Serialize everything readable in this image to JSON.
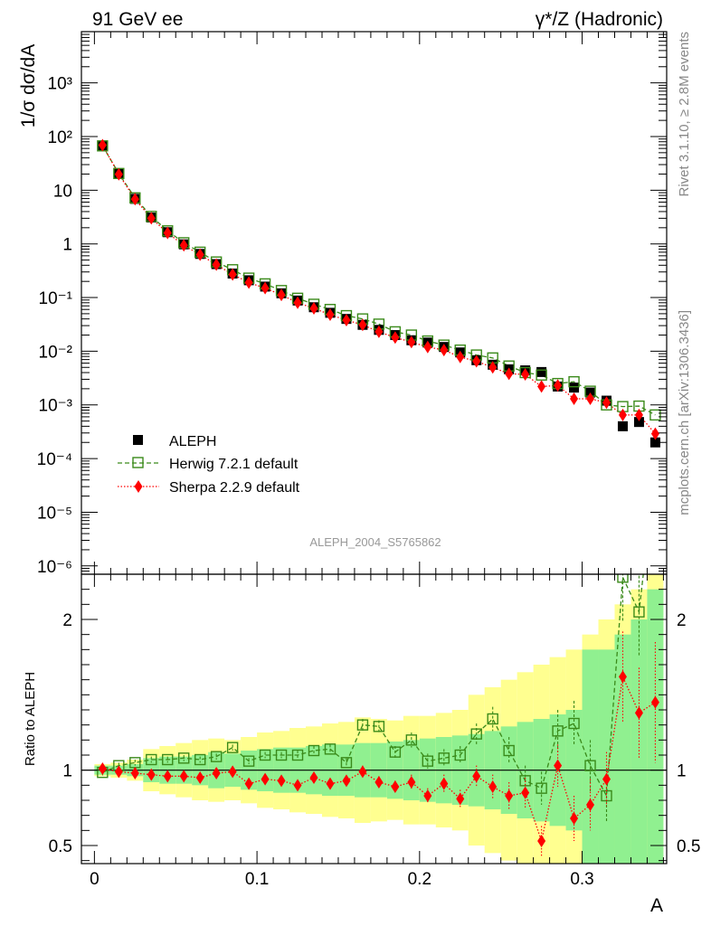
{
  "chart_data": {
    "type": "scatter",
    "top_left_label": "91 GeV ee",
    "top_right_label": "γ*/Z (Hadronic)",
    "ylabel": "1/σ  dσ/dA",
    "ratio_ylabel": "Ratio to ALEPH",
    "xlabel": "A",
    "analysis_label": "ALEPH_2004_S5765862",
    "side_label_upper": "Rivet 3.1.10, ≥ 2.8M events",
    "side_label_lower": "mcplots.cern.ch [arXiv:1306.3436]",
    "x_ticks": [
      "0",
      "0.1",
      "0.2",
      "0.3"
    ],
    "x_range": [
      -0.008,
      0.352
    ],
    "y_scale": "log",
    "y_range": [
      7e-07,
      9000
    ],
    "y_ticks": [
      "10⁻⁶",
      "10⁻⁵",
      "10⁻⁴",
      "10⁻³",
      "10⁻²",
      "10⁻¹",
      "1",
      "10",
      "10²",
      "10³"
    ],
    "ratio_range": [
      0.38,
      2.3
    ],
    "ratio_ticks": [
      "0.5",
      "1",
      "2"
    ],
    "legend": {
      "placement": "lower-left",
      "entries": [
        "ALEPH",
        "Herwig 7.2.1 default",
        "Sherpa 2.2.9 default"
      ]
    },
    "colors": {
      "aleph": "#000000",
      "herwig": "#3a8a1a",
      "sherpa": "#ff0000",
      "band_inner": "#90f090",
      "band_outer": "#ffff90"
    },
    "x": [
      0.005,
      0.015,
      0.025,
      0.035,
      0.045,
      0.055,
      0.065,
      0.075,
      0.085,
      0.095,
      0.105,
      0.115,
      0.125,
      0.135,
      0.145,
      0.155,
      0.165,
      0.175,
      0.185,
      0.195,
      0.205,
      0.215,
      0.225,
      0.235,
      0.245,
      0.255,
      0.265,
      0.275,
      0.285,
      0.295,
      0.305,
      0.315,
      0.325,
      0.335,
      0.345
    ],
    "series": [
      {
        "name": "ALEPH",
        "values": [
          68,
          20,
          6.9,
          3.1,
          1.65,
          0.98,
          0.65,
          0.42,
          0.28,
          0.21,
          0.16,
          0.12,
          0.088,
          0.066,
          0.052,
          0.04,
          0.031,
          0.025,
          0.02,
          0.016,
          0.0145,
          0.012,
          0.0095,
          0.0068,
          0.0056,
          0.0046,
          0.0044,
          0.0041,
          0.0022,
          0.0021,
          0.0017,
          0.0012,
          0.0004,
          0.00048,
          0.0002
        ]
      },
      {
        "name": "Herwig 7.2.1 default",
        "values": [
          67,
          20.5,
          7.2,
          3.25,
          1.75,
          1.05,
          0.7,
          0.46,
          0.33,
          0.23,
          0.18,
          0.135,
          0.097,
          0.075,
          0.06,
          0.046,
          0.04,
          0.032,
          0.023,
          0.02,
          0.0155,
          0.013,
          0.0105,
          0.0085,
          0.0075,
          0.0053,
          0.004,
          0.0036,
          0.0025,
          0.0027,
          0.0018,
          0.001,
          0.00093,
          0.00095,
          0.00065
        ]
      },
      {
        "name": "Sherpa 2.2.9 default",
        "values": [
          69,
          19.8,
          6.8,
          3.0,
          1.6,
          0.94,
          0.63,
          0.41,
          0.27,
          0.19,
          0.15,
          0.112,
          0.08,
          0.063,
          0.048,
          0.038,
          0.031,
          0.023,
          0.018,
          0.0148,
          0.012,
          0.0105,
          0.0078,
          0.0065,
          0.005,
          0.0038,
          0.0037,
          0.0022,
          0.0023,
          0.0013,
          0.0013,
          0.0011,
          0.00065,
          0.00065,
          0.00029
        ]
      }
    ],
    "ratio_herwig": [
      0.985,
      1.03,
      1.05,
      1.07,
      1.07,
      1.08,
      1.07,
      1.09,
      1.15,
      1.06,
      1.1,
      1.1,
      1.1,
      1.13,
      1.14,
      1.05,
      1.3,
      1.29,
      1.12,
      1.2,
      1.06,
      1.08,
      1.1,
      1.24,
      1.34,
      1.13,
      0.93,
      0.88,
      1.26,
      1.31,
      1.03,
      0.83,
      2.28,
      2.05,
      3.0
    ],
    "ratio_herwig_err": [
      0.02,
      0.02,
      0.02,
      0.02,
      0.02,
      0.02,
      0.02,
      0.02,
      0.02,
      0.02,
      0.02,
      0.02,
      0.03,
      0.03,
      0.03,
      0.03,
      0.04,
      0.04,
      0.04,
      0.05,
      0.05,
      0.06,
      0.06,
      0.07,
      0.08,
      0.09,
      0.1,
      0.11,
      0.14,
      0.15,
      0.17,
      0.18,
      0.3,
      0.3,
      0.4
    ],
    "ratio_sherpa": [
      1.01,
      0.99,
      0.98,
      0.97,
      0.96,
      0.96,
      0.95,
      0.98,
      0.99,
      0.91,
      0.94,
      0.93,
      0.9,
      0.95,
      0.91,
      0.93,
      0.99,
      0.92,
      0.89,
      0.92,
      0.83,
      0.91,
      0.81,
      0.96,
      0.89,
      0.83,
      0.85,
      0.53,
      1.03,
      0.68,
      0.77,
      0.94,
      1.62,
      1.38,
      1.45
    ],
    "ratio_sherpa_err": [
      0.02,
      0.02,
      0.02,
      0.02,
      0.02,
      0.02,
      0.02,
      0.02,
      0.02,
      0.02,
      0.02,
      0.02,
      0.03,
      0.03,
      0.03,
      0.03,
      0.04,
      0.04,
      0.04,
      0.05,
      0.05,
      0.06,
      0.06,
      0.07,
      0.08,
      0.09,
      0.1,
      0.1,
      0.14,
      0.15,
      0.17,
      0.18,
      0.3,
      0.3,
      0.4
    ],
    "band_inner": [
      0.03,
      0.03,
      0.04,
      0.08,
      0.09,
      0.09,
      0.1,
      0.12,
      0.11,
      0.13,
      0.14,
      0.15,
      0.15,
      0.16,
      0.17,
      0.17,
      0.18,
      0.18,
      0.19,
      0.2,
      0.21,
      0.22,
      0.23,
      0.24,
      0.26,
      0.29,
      0.32,
      0.34,
      0.37,
      0.4,
      0.8,
      0.8,
      0.9,
      1.0,
      1.2
    ],
    "band_outer": [
      0.04,
      0.05,
      0.07,
      0.14,
      0.16,
      0.18,
      0.2,
      0.21,
      0.2,
      0.22,
      0.25,
      0.26,
      0.28,
      0.29,
      0.31,
      0.32,
      0.35,
      0.34,
      0.33,
      0.36,
      0.36,
      0.38,
      0.4,
      0.5,
      0.55,
      0.6,
      0.65,
      0.7,
      0.75,
      0.8,
      0.9,
      1.0,
      1.1,
      1.2,
      1.3
    ]
  }
}
